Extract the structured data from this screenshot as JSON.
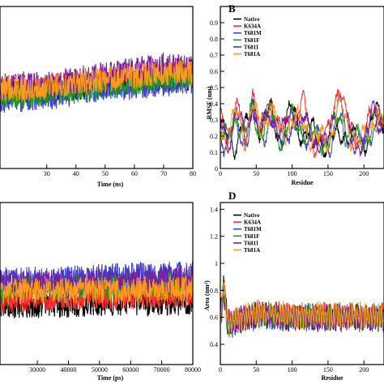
{
  "colors": {
    "Native": "#000000",
    "K634A": "#ff2d2d",
    "T681M": "#3d3dcf",
    "T681F": "#18a018",
    "T681I": "#7b1fa2",
    "T681A": "#ff9b1a"
  },
  "chart_data": [
    {
      "id": "A",
      "type": "line",
      "title": "",
      "letter": "",
      "xlabel": "Time (ns)",
      "ylabel": "",
      "xlim": [
        14,
        80
      ],
      "ylim": [
        0,
        1
      ],
      "xticks": [
        30,
        40,
        50,
        60,
        70,
        80
      ],
      "tick_labels": [
        "30",
        "40",
        "50",
        "60",
        "70",
        "80"
      ],
      "series": [
        {
          "color_key": "Native",
          "values": [
            [
              14,
              0.47
            ],
            [
              30,
              0.48
            ],
            [
              50,
              0.52
            ],
            [
              70,
              0.55
            ],
            [
              80,
              0.56
            ]
          ]
        },
        {
          "color_key": "K634A",
          "values": [
            [
              14,
              0.5
            ],
            [
              30,
              0.5
            ],
            [
              50,
              0.54
            ],
            [
              70,
              0.58
            ],
            [
              80,
              0.58
            ]
          ]
        },
        {
          "color_key": "T681M",
          "values": [
            [
              14,
              0.42
            ],
            [
              30,
              0.44
            ],
            [
              50,
              0.49
            ],
            [
              70,
              0.52
            ],
            [
              80,
              0.54
            ]
          ]
        },
        {
          "color_key": "T681F",
          "values": [
            [
              14,
              0.45
            ],
            [
              30,
              0.46
            ],
            [
              50,
              0.51
            ],
            [
              70,
              0.56
            ],
            [
              80,
              0.57
            ]
          ]
        },
        {
          "color_key": "T681I",
          "values": [
            [
              14,
              0.52
            ],
            [
              30,
              0.52
            ],
            [
              50,
              0.58
            ],
            [
              70,
              0.64
            ],
            [
              80,
              0.63
            ]
          ]
        },
        {
          "color_key": "T681A",
          "values": [
            [
              14,
              0.49
            ],
            [
              30,
              0.5
            ],
            [
              50,
              0.55
            ],
            [
              70,
              0.59
            ],
            [
              80,
              0.6
            ]
          ]
        }
      ]
    },
    {
      "id": "B",
      "type": "line",
      "title": "",
      "letter": "B",
      "xlabel": "Residue",
      "ylabel": "RMSF (nm)",
      "xlim": [
        0,
        228
      ],
      "ylim": [
        0,
        1.0
      ],
      "xticks": [
        0,
        50,
        100,
        150,
        200
      ],
      "tick_labels": [
        "0",
        "50",
        "100",
        "150",
        "200"
      ],
      "yticks": [
        0,
        0.1,
        0.2,
        0.3,
        0.4,
        0.5,
        0.6,
        0.7,
        0.8,
        0.9
      ],
      "ytick_labels": [
        "0",
        "0.1",
        "0.2",
        "0.3",
        "0.4",
        "0.5",
        "0.6",
        "0.7",
        "0.8",
        "0.9"
      ],
      "legend": [
        "Native",
        "K634A",
        "T681M",
        "T681F",
        "T681I",
        "T681A"
      ],
      "series": [
        {
          "name": "Native",
          "values": [
            [
              0,
              0.25
            ],
            [
              10,
              0.18
            ],
            [
              20,
              0.14
            ],
            [
              30,
              0.28
            ],
            [
              40,
              0.22
            ],
            [
              45,
              0.42
            ],
            [
              55,
              0.25
            ],
            [
              70,
              0.35
            ],
            [
              85,
              0.18
            ],
            [
              100,
              0.38
            ],
            [
              115,
              0.2
            ],
            [
              130,
              0.22
            ],
            [
              150,
              0.14
            ],
            [
              170,
              0.24
            ],
            [
              180,
              0.18
            ],
            [
              200,
              0.16
            ],
            [
              215,
              0.34
            ],
            [
              228,
              0.28
            ]
          ]
        },
        {
          "name": "K634A",
          "values": [
            [
              0,
              0.3
            ],
            [
              10,
              0.2
            ],
            [
              22,
              0.38
            ],
            [
              35,
              0.18
            ],
            [
              45,
              0.5
            ],
            [
              55,
              0.2
            ],
            [
              70,
              0.4
            ],
            [
              85,
              0.22
            ],
            [
              100,
              0.3
            ],
            [
              115,
              0.4
            ],
            [
              130,
              0.16
            ],
            [
              150,
              0.2
            ],
            [
              165,
              0.54
            ],
            [
              180,
              0.22
            ],
            [
              200,
              0.18
            ],
            [
              215,
              0.38
            ],
            [
              228,
              0.32
            ]
          ]
        },
        {
          "name": "T681M",
          "values": [
            [
              0,
              0.22
            ],
            [
              10,
              0.14
            ],
            [
              22,
              0.3
            ],
            [
              35,
              0.15
            ],
            [
              45,
              0.36
            ],
            [
              55,
              0.18
            ],
            [
              70,
              0.3
            ],
            [
              85,
              0.16
            ],
            [
              100,
              0.28
            ],
            [
              115,
              0.22
            ],
            [
              130,
              0.18
            ],
            [
              150,
              0.14
            ],
            [
              165,
              0.3
            ],
            [
              180,
              0.18
            ],
            [
              200,
              0.14
            ],
            [
              215,
              0.28
            ],
            [
              228,
              0.22
            ]
          ]
        },
        {
          "name": "T681F",
          "values": [
            [
              0,
              0.24
            ],
            [
              10,
              0.16
            ],
            [
              22,
              0.32
            ],
            [
              35,
              0.2
            ],
            [
              45,
              0.38
            ],
            [
              55,
              0.22
            ],
            [
              70,
              0.34
            ],
            [
              85,
              0.18
            ],
            [
              100,
              0.3
            ],
            [
              115,
              0.24
            ],
            [
              130,
              0.2
            ],
            [
              150,
              0.16
            ],
            [
              165,
              0.32
            ],
            [
              180,
              0.2
            ],
            [
              200,
              0.16
            ],
            [
              215,
              0.3
            ],
            [
              228,
              0.26
            ]
          ]
        },
        {
          "name": "T681I",
          "values": [
            [
              0,
              0.28
            ],
            [
              10,
              0.15
            ],
            [
              22,
              0.36
            ],
            [
              35,
              0.17
            ],
            [
              45,
              0.44
            ],
            [
              55,
              0.2
            ],
            [
              70,
              0.36
            ],
            [
              85,
              0.2
            ],
            [
              100,
              0.36
            ],
            [
              115,
              0.3
            ],
            [
              130,
              0.18
            ],
            [
              150,
              0.15
            ],
            [
              165,
              0.48
            ],
            [
              180,
              0.2
            ],
            [
              200,
              0.17
            ],
            [
              215,
              0.36
            ],
            [
              228,
              0.3
            ]
          ]
        },
        {
          "name": "T681A",
          "values": [
            [
              0,
              0.26
            ],
            [
              10,
              0.17
            ],
            [
              22,
              0.34
            ],
            [
              35,
              0.19
            ],
            [
              45,
              0.4
            ],
            [
              55,
              0.21
            ],
            [
              70,
              0.38
            ],
            [
              85,
              0.19
            ],
            [
              100,
              0.32
            ],
            [
              115,
              0.26
            ],
            [
              130,
              0.19
            ],
            [
              150,
              0.17
            ],
            [
              165,
              0.4
            ],
            [
              180,
              0.21
            ],
            [
              200,
              0.17
            ],
            [
              215,
              0.32
            ],
            [
              228,
              0.27
            ]
          ]
        }
      ]
    },
    {
      "id": "C",
      "type": "line",
      "title": "",
      "letter": "",
      "xlabel": "Time (ps)",
      "ylabel": "",
      "xlim": [
        18000,
        80000
      ],
      "ylim": [
        0,
        1
      ],
      "xticks": [
        30000,
        40000,
        50000,
        60000,
        70000,
        80000
      ],
      "tick_labels": [
        "30000",
        "40000",
        "50000",
        "60000",
        "70000",
        "80000"
      ],
      "series": [
        {
          "color_key": "Native",
          "values": [
            [
              18000,
              0.36
            ],
            [
              40000,
              0.37
            ],
            [
              60000,
              0.38
            ],
            [
              80000,
              0.38
            ]
          ]
        },
        {
          "color_key": "K634A",
          "values": [
            [
              18000,
              0.4
            ],
            [
              40000,
              0.42
            ],
            [
              60000,
              0.42
            ],
            [
              80000,
              0.43
            ]
          ]
        },
        {
          "color_key": "T681M",
          "values": [
            [
              18000,
              0.52
            ],
            [
              40000,
              0.53
            ],
            [
              60000,
              0.55
            ],
            [
              80000,
              0.56
            ]
          ]
        },
        {
          "color_key": "T681F",
          "values": [
            [
              18000,
              0.47
            ],
            [
              40000,
              0.48
            ],
            [
              60000,
              0.49
            ],
            [
              80000,
              0.5
            ]
          ]
        },
        {
          "color_key": "T681I",
          "values": [
            [
              18000,
              0.5
            ],
            [
              40000,
              0.5
            ],
            [
              60000,
              0.52
            ],
            [
              80000,
              0.53
            ]
          ]
        },
        {
          "color_key": "T681A",
          "values": [
            [
              18000,
              0.45
            ],
            [
              40000,
              0.46
            ],
            [
              60000,
              0.46
            ],
            [
              80000,
              0.47
            ]
          ]
        }
      ]
    },
    {
      "id": "D",
      "type": "line",
      "title": "",
      "letter": "D",
      "xlabel": "Residue",
      "ylabel": "Area (nm²)",
      "xlim": [
        0,
        228
      ],
      "ylim": [
        0.25,
        1.45
      ],
      "xticks": [
        0,
        50,
        100,
        150,
        200
      ],
      "tick_labels": [
        "0",
        "50",
        "100",
        "150",
        "200"
      ],
      "yticks": [
        0.4,
        0.6,
        0.8,
        1.0,
        1.2,
        1.4
      ],
      "ytick_labels": [
        "0.4",
        "0.6",
        "0.8",
        "1",
        "1.2",
        "1.4"
      ],
      "legend": [
        "Native",
        "K634A",
        "T681M",
        "T681F",
        "T681I",
        "T681A"
      ],
      "series": [
        {
          "name": "Native",
          "values": [
            [
              0,
              0.6
            ],
            [
              5,
              0.86
            ],
            [
              10,
              0.55
            ],
            [
              50,
              0.62
            ],
            [
              100,
              0.6
            ],
            [
              150,
              0.6
            ],
            [
              200,
              0.6
            ],
            [
              228,
              0.6
            ]
          ]
        },
        {
          "name": "K634A",
          "values": [
            [
              0,
              0.58
            ],
            [
              5,
              0.82
            ],
            [
              10,
              0.56
            ],
            [
              50,
              0.63
            ],
            [
              100,
              0.61
            ],
            [
              150,
              0.61
            ],
            [
              200,
              0.61
            ],
            [
              228,
              0.61
            ]
          ]
        },
        {
          "name": "T681M",
          "values": [
            [
              0,
              0.57
            ],
            [
              5,
              0.78
            ],
            [
              10,
              0.54
            ],
            [
              50,
              0.61
            ],
            [
              100,
              0.59
            ],
            [
              150,
              0.59
            ],
            [
              200,
              0.59
            ],
            [
              228,
              0.59
            ]
          ]
        },
        {
          "name": "T681F",
          "values": [
            [
              0,
              0.59
            ],
            [
              5,
              0.8
            ],
            [
              10,
              0.55
            ],
            [
              50,
              0.62
            ],
            [
              100,
              0.6
            ],
            [
              150,
              0.6
            ],
            [
              200,
              0.6
            ],
            [
              228,
              0.6
            ]
          ]
        },
        {
          "name": "T681I",
          "values": [
            [
              0,
              0.58
            ],
            [
              5,
              0.84
            ],
            [
              10,
              0.55
            ],
            [
              50,
              0.62
            ],
            [
              100,
              0.6
            ],
            [
              150,
              0.6
            ],
            [
              200,
              0.6
            ],
            [
              228,
              0.6
            ]
          ]
        },
        {
          "name": "T681A",
          "values": [
            [
              0,
              0.6
            ],
            [
              5,
              0.83
            ],
            [
              10,
              0.56
            ],
            [
              50,
              0.63
            ],
            [
              100,
              0.61
            ],
            [
              150,
              0.61
            ],
            [
              200,
              0.61
            ],
            [
              228,
              0.61
            ]
          ]
        }
      ]
    }
  ]
}
